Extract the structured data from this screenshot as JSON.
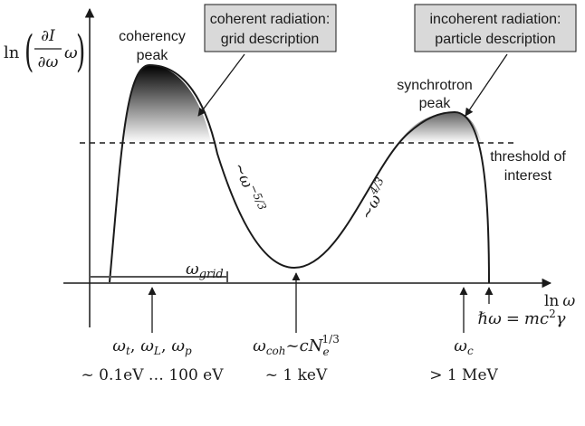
{
  "y_axis_label": {
    "prefix": "ln",
    "numerator": "∂I",
    "denominator": "∂ω",
    "suffix": "ω"
  },
  "x_axis_label": {
    "prefix": "ln",
    "var": "ω"
  },
  "boxes": {
    "coherent": {
      "line1": "coherent radiation:",
      "line2": "grid description"
    },
    "incoherent": {
      "line1": "incoherent radiation:",
      "line2": "particle description"
    }
  },
  "peaks": {
    "coherency": {
      "line1": "coherency",
      "line2": "peak"
    },
    "synchrotron": {
      "line1": "synchrotron",
      "line2": "peak"
    }
  },
  "threshold": {
    "line1": "threshold of",
    "line2": "interest"
  },
  "slopes": {
    "falling": {
      "base": "~ω",
      "exp": "−5/3"
    },
    "rising": {
      "base": "~ω",
      "exp": "4/3"
    }
  },
  "grid_label": {
    "base": "ω",
    "sub": "grid"
  },
  "ticks": {
    "left": {
      "w1": "ω",
      "s1": "t",
      "w2": "ω",
      "s2": "L",
      "w3": "ω",
      "s3": "p",
      "energy": "~ 0.1eV … 100 eV"
    },
    "mid": {
      "w": "ω",
      "s": "coh",
      "rel": "~c",
      "N": "N",
      "Nsub": "e",
      "Nsup": "1/3",
      "energy": "~ 1 keV"
    },
    "right": {
      "w": "ω",
      "s": "c",
      "energy": "> 1 MeV"
    },
    "far": {
      "lhs": "ℏω",
      "eq": "=",
      "rhs": "mc",
      "rhs_sup": "2",
      "gamma": "γ"
    }
  },
  "colors": {
    "axis": "#1a1a1a",
    "box_fill": "#d9d9d9",
    "peak_dark": "#000000"
  }
}
